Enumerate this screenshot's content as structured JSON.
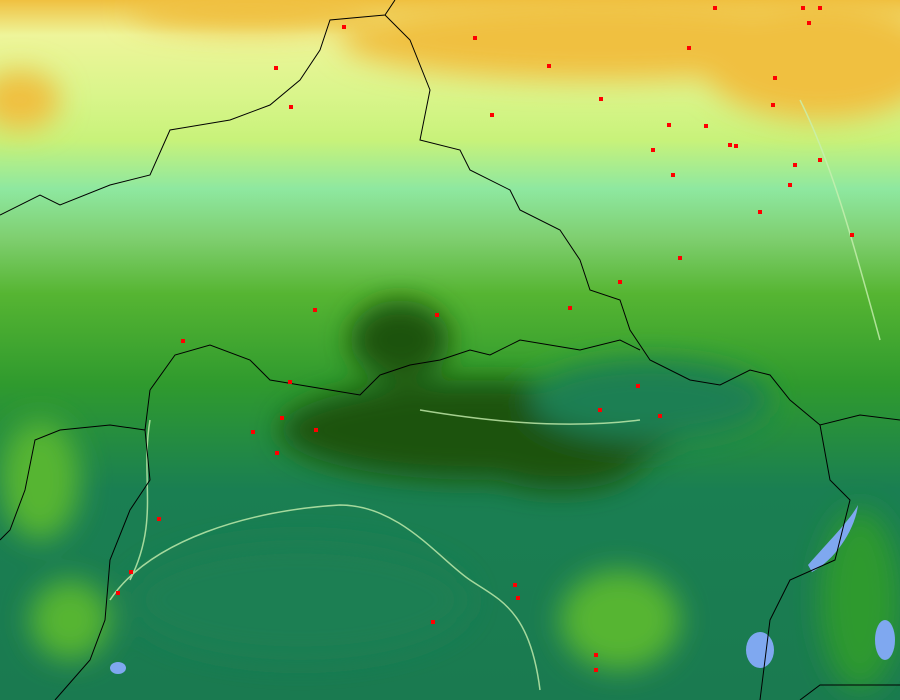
{
  "map": {
    "type": "land-cover",
    "colors": {
      "desert_orange": "#f0c040",
      "grassland_yellow": "#eef59a",
      "shrub_lime": "#c8f27a",
      "savanna_mint": "#8ee8a0",
      "cropland_green": "#56b532",
      "forest_green": "#2f9a2e",
      "woodland_teal": "#1a7f52",
      "dense_forest": "#1e5208",
      "water": "#7fa8f0",
      "fire_points": "#ff0000",
      "borders": "#000000",
      "rivers": "#c8f0b0"
    },
    "icons": [
      "fire-point-marker"
    ]
  }
}
